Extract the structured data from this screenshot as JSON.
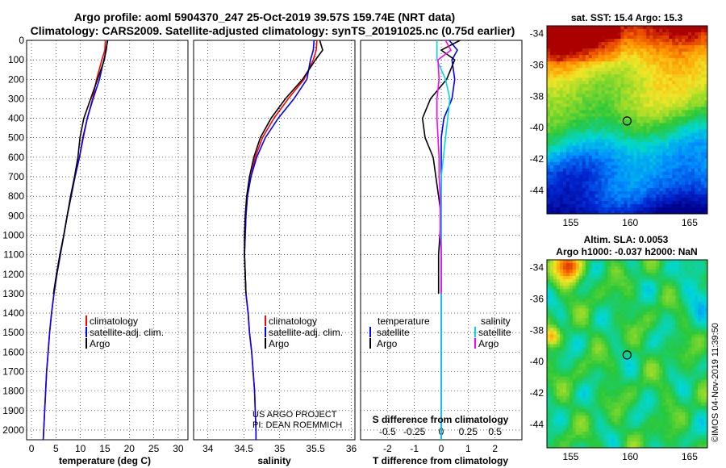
{
  "header": {
    "title_line1": "Argo profile: aoml 5904370_247 25-Oct-2019 39.57S 159.74E (NRT data)",
    "title_line2": "Climatology: CARS2009. Satellite-adjusted climatology: synTS_20191025.nc (0.75d earlier)"
  },
  "credits": {
    "project": "US ARGO PROJECT",
    "pi": "PI: DEAN ROEMMICH",
    "imos": "©IMOS 04-Nov-2019 11:39:50"
  },
  "colors": {
    "climatology": "#ff0000",
    "satellite_adj": "#0000ff",
    "argo": "#000000",
    "salinity_satellite": "#00d8e8",
    "salinity_argo": "#ff00ff"
  },
  "depth_ticks": [
    "0",
    "100",
    "200",
    "300",
    "400",
    "500",
    "600",
    "700",
    "800",
    "900",
    "1000",
    "1100",
    "1200",
    "1300",
    "1400",
    "1500",
    "1600",
    "1700",
    "1800",
    "1900",
    "2000"
  ],
  "chart_data": [
    {
      "type": "line",
      "xlabel": "temperature (deg C)",
      "ylabel": "",
      "xlim": [
        -1,
        32
      ],
      "ylim": [
        2050,
        0
      ],
      "x_ticks": [
        "0",
        "5",
        "10",
        "15",
        "20",
        "25",
        "30"
      ],
      "legend": [
        "climatology",
        "satellite-adj. clim.",
        "Argo"
      ],
      "depth": [
        0,
        50,
        100,
        200,
        300,
        400,
        500,
        600,
        700,
        800,
        900,
        1000,
        1100,
        1200,
        1300,
        1400,
        1500,
        1600,
        1700,
        1800,
        1900,
        2000,
        2050
      ],
      "series": [
        {
          "name": "climatology",
          "values": [
            15.1,
            15.0,
            14.4,
            13.3,
            12.5,
            11.4,
            10.6,
            9.8,
            8.9,
            8.1,
            7.3,
            6.6,
            5.9,
            5.2,
            4.6,
            4.1,
            3.7,
            3.4,
            3.1,
            2.9,
            2.7,
            2.5,
            2.4
          ]
        },
        {
          "name": "satellite-adj. clim.",
          "values": [
            15.5,
            15.3,
            14.8,
            13.9,
            12.6,
            11.4,
            10.5,
            9.8,
            8.9,
            8.1,
            7.3,
            6.6,
            5.9,
            5.2,
            4.6,
            4.1,
            3.7,
            3.4,
            3.1,
            2.9,
            2.7,
            2.5,
            2.4
          ]
        },
        {
          "name": "Argo",
          "values": [
            15.6,
            15.2,
            14.9,
            13.5,
            12.1,
            10.7,
            9.9,
            9.5,
            8.8,
            8.0,
            7.3,
            6.6,
            5.8,
            5.1,
            4.5
          ]
        }
      ]
    },
    {
      "type": "line",
      "xlabel": "salinity",
      "ylabel": "",
      "xlim": [
        33.8,
        36.05
      ],
      "ylim": [
        2050,
        0
      ],
      "x_ticks": [
        "34",
        "34.5",
        "35",
        "35.5",
        "36"
      ],
      "legend": [
        "climatology",
        "satellite-adj. clim.",
        "Argo"
      ],
      "depth": [
        0,
        50,
        100,
        200,
        300,
        400,
        500,
        600,
        700,
        800,
        900,
        1000,
        1100,
        1200,
        1300,
        1400,
        1500,
        1600,
        1700,
        1800,
        1900,
        2000,
        2050
      ],
      "series": [
        {
          "name": "climatology",
          "values": [
            35.52,
            35.51,
            35.47,
            35.34,
            35.12,
            34.92,
            34.76,
            34.66,
            34.6,
            34.55,
            34.53,
            34.52,
            34.51,
            34.52,
            34.53,
            34.56,
            34.58,
            34.61,
            34.63,
            34.65,
            34.66,
            34.67,
            34.67
          ]
        },
        {
          "name": "satellite-adj. clim.",
          "values": [
            35.48,
            35.47,
            35.43,
            35.38,
            35.2,
            34.98,
            34.8,
            34.68,
            34.6,
            34.55,
            34.53,
            34.52,
            34.51,
            34.52,
            34.53,
            34.56,
            34.58,
            34.61,
            34.63,
            34.65,
            34.66,
            34.67,
            34.67
          ]
        },
        {
          "name": "Argo",
          "values": [
            35.56,
            35.6,
            35.5,
            35.32,
            35.08,
            34.88,
            34.73,
            34.64,
            34.58,
            34.54,
            34.52,
            34.51,
            34.51,
            34.52,
            34.53
          ]
        }
      ]
    },
    {
      "type": "line",
      "xlabel": "T difference from climatology",
      "x2label": "S difference from climatology",
      "xlim": [
        -3,
        3
      ],
      "ylim": [
        2050,
        0
      ],
      "x_ticks": [
        "-2",
        "-1",
        "0",
        "1",
        "2"
      ],
      "x2_ticks": [
        "-0.5",
        "-0.25",
        "0",
        "0.25",
        "0.5"
      ],
      "legend_temperature": {
        "header": "temperature",
        "items": [
          "satellite",
          "Argo"
        ]
      },
      "legend_salinity": {
        "header": "salinity",
        "items": [
          "satellite",
          "Argo"
        ]
      },
      "depth": [
        0,
        50,
        100,
        200,
        300,
        400,
        500,
        600,
        700,
        800,
        900,
        1000,
        1100,
        1200,
        1300,
        1400,
        1500,
        1600,
        1700,
        1800,
        1900,
        2000,
        2050
      ],
      "series": [
        {
          "name": "temperature satellite",
          "values": [
            0.3,
            0.6,
            0.4,
            0.5,
            0.4,
            0.1,
            0.0,
            0.0,
            0.0,
            0.0,
            0.0,
            0.0,
            0.0,
            0.0,
            0.0,
            0.0,
            0.0,
            0.0,
            0.0,
            0.0,
            0.0,
            0.0,
            0.0
          ]
        },
        {
          "name": "temperature Argo",
          "values": [
            0.7,
            0.0,
            0.5,
            0.2,
            -0.4,
            -0.7,
            -0.6,
            -0.3,
            -0.2,
            -0.1,
            0.0,
            -0.05,
            -0.1,
            -0.1,
            -0.1
          ]
        },
        {
          "name": "salinity satellite",
          "values": [
            -0.04,
            -0.04,
            -0.04,
            0.04,
            0.08,
            0.06,
            0.04,
            0.02,
            0.0,
            0.0,
            0.0,
            0.0,
            0.0,
            0.0,
            0.0,
            0.0,
            0.0,
            0.0,
            0.0,
            0.0,
            0.0,
            0.0,
            0.0
          ]
        },
        {
          "name": "salinity Argo",
          "values": [
            0.04,
            0.09,
            -0.03,
            -0.02,
            -0.04,
            -0.04,
            -0.03,
            -0.02,
            -0.02,
            -0.01,
            -0.01,
            -0.01,
            0.0,
            0.0,
            0.0
          ]
        }
      ]
    },
    {
      "type": "heatmap",
      "title": "sat. SST: 15.4 Argo: 15.3",
      "x_ticks": [
        "155",
        "160",
        "165"
      ],
      "y_ticks": [
        "-34",
        "-36",
        "-38",
        "-40",
        "-42",
        "-44"
      ],
      "xlim": [
        153,
        166.5
      ],
      "ylim": [
        -45.5,
        -33.5
      ],
      "profile_location": {
        "lon": 159.74,
        "lat": -39.57
      }
    },
    {
      "type": "heatmap",
      "title_line1": "Altim. SLA: 0.0053",
      "title_line2": "Argo h1000: -0.037 h2000: NaN",
      "x_ticks": [
        "155",
        "160",
        "165"
      ],
      "y_ticks": [
        "-34",
        "-36",
        "-38",
        "-40",
        "-42",
        "-44"
      ],
      "xlim": [
        153,
        166.5
      ],
      "ylim": [
        -45.5,
        -33.5
      ],
      "profile_location": {
        "lon": 159.74,
        "lat": -39.57
      }
    }
  ]
}
